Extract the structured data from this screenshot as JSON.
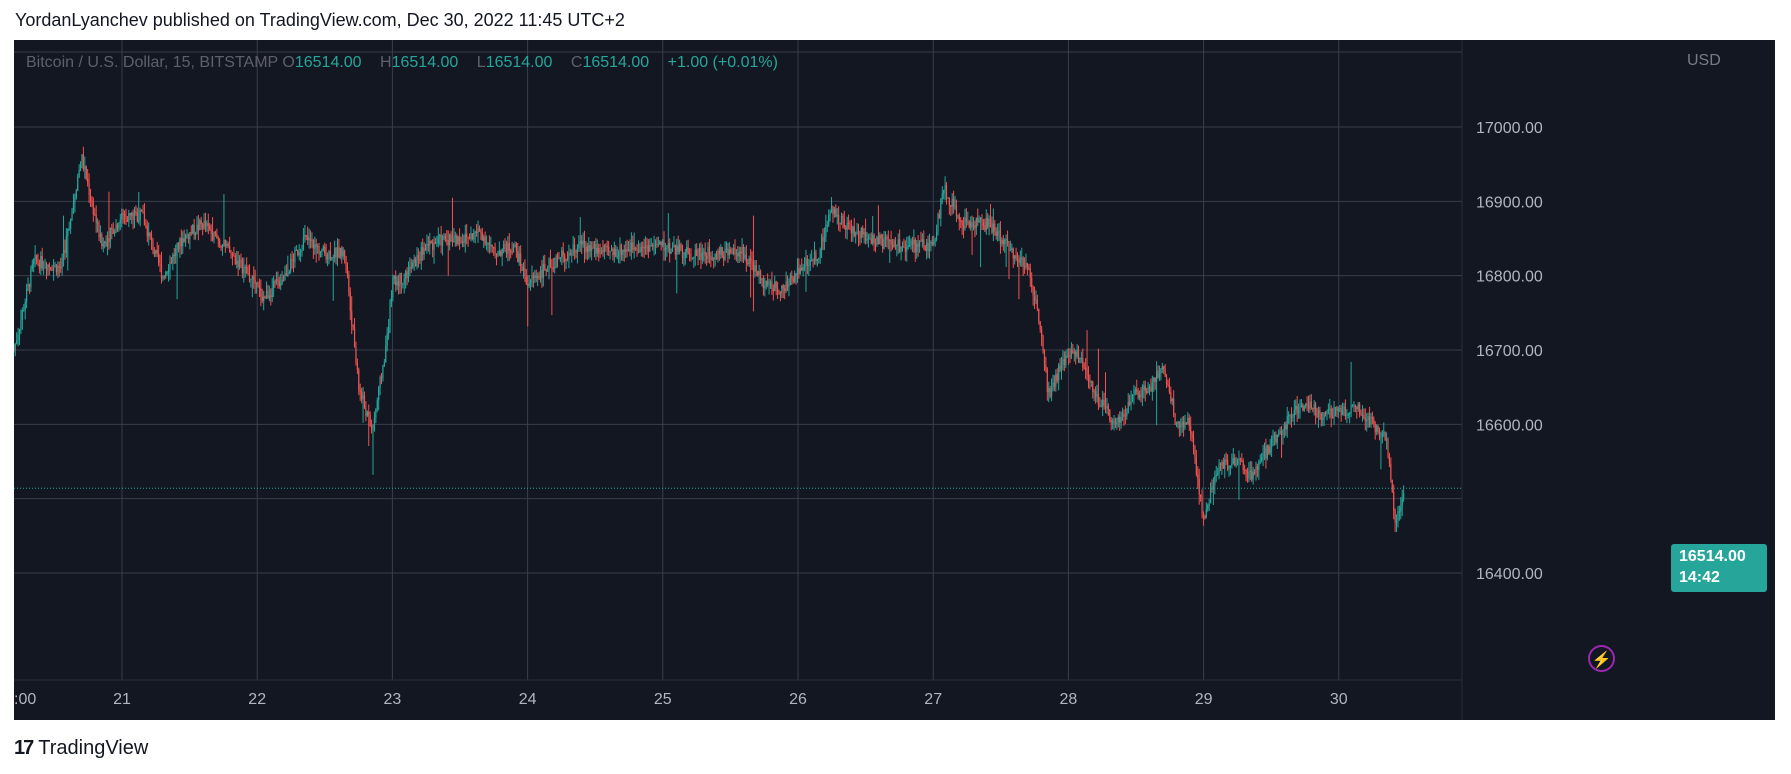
{
  "header": {
    "text": "YordanLyanchev published on TradingView.com, Dec 30, 2022 11:45 UTC+2"
  },
  "legend": {
    "symbol": "Bitcoin / U.S. Dollar, 15, BITSTAMP",
    "o_label": "O",
    "o_value": "16514.00",
    "h_label": "H",
    "h_value": "16514.00",
    "l_label": "L",
    "l_value": "16514.00",
    "c_label": "C",
    "c_value": "16514.00",
    "change": "+1.00 (+0.01%)"
  },
  "price_tag": {
    "price": "16514.00",
    "countdown": "14:42"
  },
  "footer": {
    "logo_glyph": "17",
    "brand": "TradingView"
  },
  "colors": {
    "background": "#131722",
    "grid": "#2a2e39",
    "up": "#26a69a",
    "down": "#ef5350",
    "text": "#b2b5be"
  },
  "chart_data": {
    "type": "candlestick",
    "currency": "USD",
    "x_tick_labels": [
      ":00",
      "21",
      "22",
      "23",
      "24",
      "25",
      "26",
      "27",
      "28",
      "29",
      "30"
    ],
    "x_ticks_day": [
      20,
      21,
      22,
      23,
      24,
      25,
      26,
      27,
      28,
      29,
      30
    ],
    "y_ticks": [
      16400,
      16500,
      16600,
      16700,
      16800,
      16900,
      17000
    ],
    "y_tick_labels": [
      "16400.00",
      "16600.00",
      "16700.00",
      "16800.00",
      "16900.00",
      "17000.00"
    ],
    "ylim": [
      16370,
      17080
    ],
    "xlim_day": [
      20.2,
      31.0
    ],
    "last_price": 16514,
    "close_path": [
      [
        20.2,
        16700
      ],
      [
        20.35,
        16820
      ],
      [
        20.55,
        16810
      ],
      [
        20.7,
        16960
      ],
      [
        20.85,
        16840
      ],
      [
        21.0,
        16880
      ],
      [
        21.15,
        16880
      ],
      [
        21.3,
        16800
      ],
      [
        21.45,
        16850
      ],
      [
        21.6,
        16870
      ],
      [
        21.75,
        16840
      ],
      [
        21.9,
        16810
      ],
      [
        22.05,
        16770
      ],
      [
        22.2,
        16800
      ],
      [
        22.35,
        16850
      ],
      [
        22.5,
        16830
      ],
      [
        22.65,
        16830
      ],
      [
        22.75,
        16650
      ],
      [
        22.85,
        16590
      ],
      [
        22.95,
        16700
      ],
      [
        23.0,
        16790
      ],
      [
        23.1,
        16800
      ],
      [
        23.25,
        16840
      ],
      [
        23.4,
        16850
      ],
      [
        23.55,
        16850
      ],
      [
        23.65,
        16860
      ],
      [
        23.75,
        16830
      ],
      [
        23.9,
        16840
      ],
      [
        24.0,
        16790
      ],
      [
        24.2,
        16820
      ],
      [
        24.4,
        16840
      ],
      [
        24.6,
        16830
      ],
      [
        24.8,
        16840
      ],
      [
        25.0,
        16840
      ],
      [
        25.2,
        16830
      ],
      [
        25.4,
        16830
      ],
      [
        25.6,
        16830
      ],
      [
        25.75,
        16790
      ],
      [
        25.9,
        16780
      ],
      [
        26.0,
        16810
      ],
      [
        26.15,
        16830
      ],
      [
        26.25,
        16890
      ],
      [
        26.4,
        16860
      ],
      [
        26.55,
        16850
      ],
      [
        26.7,
        16840
      ],
      [
        26.85,
        16840
      ],
      [
        27.0,
        16840
      ],
      [
        27.08,
        16920
      ],
      [
        27.2,
        16870
      ],
      [
        27.4,
        16870
      ],
      [
        27.55,
        16840
      ],
      [
        27.7,
        16810
      ],
      [
        27.8,
        16730
      ],
      [
        27.85,
        16640
      ],
      [
        27.95,
        16680
      ],
      [
        28.05,
        16700
      ],
      [
        28.2,
        16640
      ],
      [
        28.35,
        16600
      ],
      [
        28.5,
        16640
      ],
      [
        28.6,
        16650
      ],
      [
        28.7,
        16680
      ],
      [
        28.8,
        16600
      ],
      [
        28.9,
        16600
      ],
      [
        29.0,
        16470
      ],
      [
        29.1,
        16540
      ],
      [
        29.25,
        16550
      ],
      [
        29.35,
        16530
      ],
      [
        29.45,
        16560
      ],
      [
        29.6,
        16600
      ],
      [
        29.75,
        16630
      ],
      [
        29.9,
        16610
      ],
      [
        30.05,
        16620
      ],
      [
        30.15,
        16620
      ],
      [
        30.25,
        16600
      ],
      [
        30.35,
        16580
      ],
      [
        30.42,
        16460
      ],
      [
        30.48,
        16514
      ]
    ]
  }
}
